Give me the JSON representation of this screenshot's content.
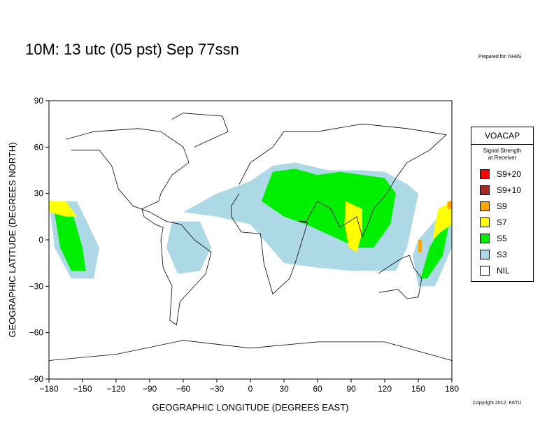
{
  "header": {
    "title": "10M:  13 utc (05 pst) Sep 77ssn",
    "prepared_for": "Prepared for: NH8S"
  },
  "footer": {
    "copyright": "Copyright 2012, K6TU"
  },
  "legend": {
    "title": "VOACAP",
    "subtitle_line1": "Signal Strength",
    "subtitle_line2": "at Receiver",
    "items": [
      {
        "label": "S9+20",
        "color": "#ff0000"
      },
      {
        "label": "S9+10",
        "color": "#a52a2a"
      },
      {
        "label": "S9",
        "color": "#ffa500"
      },
      {
        "label": "S7",
        "color": "#ffff00"
      },
      {
        "label": "S5",
        "color": "#00ee00"
      },
      {
        "label": "S3",
        "color": "#add8e6"
      },
      {
        "label": "NIL",
        "color": "#ffffff"
      }
    ]
  },
  "chart_data": {
    "type": "map",
    "xlabel": "GEOGRAPHIC LONGITUDE (DEGREES EAST)",
    "ylabel": "GEOGRAPHIC LATITUDE (DEGREES NORTH)",
    "xlim": [
      -180,
      180
    ],
    "ylim": [
      -90,
      90
    ],
    "xticks": [
      -180,
      -150,
      -120,
      -90,
      -60,
      -30,
      0,
      30,
      60,
      90,
      120,
      150,
      180
    ],
    "yticks": [
      90,
      60,
      30,
      0,
      -30,
      -60,
      -90
    ],
    "xtick_labels": [
      "−180",
      "−150",
      "−120",
      "−90",
      "−60",
      "−30",
      "0",
      "30",
      "60",
      "90",
      "120",
      "150",
      "180"
    ],
    "ytick_labels": [
      "90",
      "60",
      "30",
      "0",
      "−30",
      "−60",
      "−90"
    ],
    "regions": [
      {
        "level": "S3",
        "polygon": [
          [
            -60,
            18
          ],
          [
            -30,
            30
          ],
          [
            0,
            38
          ],
          [
            20,
            48
          ],
          [
            40,
            50
          ],
          [
            70,
            45
          ],
          [
            100,
            45
          ],
          [
            120,
            44
          ],
          [
            140,
            36
          ],
          [
            150,
            30
          ],
          [
            140,
            -5
          ],
          [
            130,
            -20
          ],
          [
            90,
            -20
          ],
          [
            60,
            -18
          ],
          [
            30,
            -15
          ],
          [
            0,
            10
          ],
          [
            -30,
            15
          ]
        ]
      },
      {
        "level": "S3",
        "polygon": [
          [
            -70,
            12
          ],
          [
            -45,
            12
          ],
          [
            -35,
            -5
          ],
          [
            -45,
            -20
          ],
          [
            -65,
            -22
          ],
          [
            -75,
            -5
          ]
        ]
      },
      {
        "level": "S3",
        "polygon": [
          [
            -180,
            25
          ],
          [
            -155,
            25
          ],
          [
            -135,
            -5
          ],
          [
            -140,
            -25
          ],
          [
            -160,
            -25
          ],
          [
            -175,
            -5
          ]
        ]
      },
      {
        "level": "S3",
        "polygon": [
          [
            150,
            0
          ],
          [
            180,
            25
          ],
          [
            180,
            -5
          ],
          [
            165,
            -30
          ],
          [
            150,
            -30
          ],
          [
            145,
            -10
          ]
        ]
      },
      {
        "level": "S5",
        "polygon": [
          [
            15,
            35
          ],
          [
            20,
            44
          ],
          [
            40,
            46
          ],
          [
            60,
            42
          ],
          [
            80,
            44
          ],
          [
            100,
            42
          ],
          [
            120,
            40
          ],
          [
            130,
            30
          ],
          [
            125,
            10
          ],
          [
            110,
            -5
          ],
          [
            95,
            -5
          ],
          [
            80,
            0
          ],
          [
            50,
            10
          ],
          [
            30,
            15
          ],
          [
            10,
            25
          ]
        ]
      },
      {
        "level": "S5",
        "polygon": [
          [
            -176,
            22
          ],
          [
            -160,
            20
          ],
          [
            -150,
            -5
          ],
          [
            -147,
            -20
          ],
          [
            -160,
            -20
          ],
          [
            -170,
            -5
          ]
        ]
      },
      {
        "level": "S5",
        "polygon": [
          [
            160,
            -5
          ],
          [
            180,
            20
          ],
          [
            172,
            -10
          ],
          [
            158,
            -25
          ],
          [
            152,
            -25
          ]
        ]
      },
      {
        "level": "S7",
        "polygon": [
          [
            -180,
            25
          ],
          [
            -165,
            25
          ],
          [
            -155,
            15
          ],
          [
            -165,
            15
          ],
          [
            -180,
            18
          ]
        ]
      },
      {
        "level": "S7",
        "polygon": [
          [
            85,
            25
          ],
          [
            100,
            20
          ],
          [
            100,
            5
          ],
          [
            95,
            -8
          ],
          [
            88,
            -5
          ],
          [
            84,
            10
          ]
        ]
      },
      {
        "level": "S7",
        "polygon": [
          [
            168,
            20
          ],
          [
            180,
            25
          ],
          [
            180,
            10
          ],
          [
            170,
            5
          ],
          [
            163,
            0
          ],
          [
            165,
            10
          ]
        ]
      },
      {
        "level": "S9",
        "polygon": [
          [
            150,
            0
          ],
          [
            153,
            0
          ],
          [
            153,
            -8
          ],
          [
            150,
            -8
          ]
        ]
      },
      {
        "level": "S9",
        "polygon": [
          [
            176,
            25
          ],
          [
            180,
            25
          ],
          [
            180,
            20
          ],
          [
            176,
            20
          ]
        ]
      }
    ]
  }
}
